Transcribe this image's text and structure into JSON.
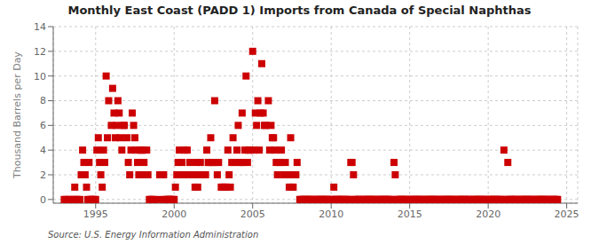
{
  "chart_data": {
    "type": "scatter",
    "title": "Monthly East Coast (PADD 1) Imports from Canada of Special Naphthas",
    "ylabel": "Thousand Barrels per Day",
    "annotations": [
      "Source: U.S. Energy Information Administration"
    ],
    "color": "#cc0000",
    "marker": "square",
    "grid": true,
    "xlim": [
      1992.3,
      2025.7
    ],
    "ylim": [
      -0.3,
      14
    ],
    "xticks": [
      1995,
      2000,
      2005,
      2010,
      2015,
      2020,
      2025
    ],
    "yticks": [
      0,
      2,
      4,
      6,
      8,
      10,
      12,
      14
    ],
    "x": [
      1993.0,
      1993.08,
      1993.25,
      1993.42,
      1993.58,
      1993.67,
      1993.75,
      1993.83,
      1994.0,
      1994.08,
      1994.17,
      1994.25,
      1994.33,
      1994.42,
      1994.5,
      1994.58,
      1994.67,
      1994.75,
      1994.83,
      1994.92,
      1995.0,
      1995.08,
      1995.17,
      1995.25,
      1995.33,
      1995.42,
      1995.5,
      1995.58,
      1995.67,
      1995.75,
      1995.83,
      1996.0,
      1996.08,
      1996.17,
      1996.25,
      1996.33,
      1996.42,
      1996.5,
      1996.58,
      1996.67,
      1996.75,
      1996.83,
      1997.0,
      1997.08,
      1997.17,
      1997.25,
      1997.33,
      1997.42,
      1997.5,
      1997.58,
      1997.67,
      1997.75,
      1997.83,
      1997.92,
      1998.0,
      1998.08,
      1998.17,
      1998.25,
      1998.33,
      1998.42,
      1998.5,
      1998.58,
      1998.67,
      1999.0,
      1999.08,
      1999.17,
      1999.25,
      1999.33,
      1999.42,
      1999.5,
      1999.58,
      1999.67,
      1999.75,
      1999.83,
      1999.92,
      2000.0,
      2000.08,
      2000.17,
      2000.25,
      2000.33,
      2000.42,
      2000.5,
      2000.58,
      2000.67,
      2000.75,
      2000.83,
      2001.0,
      2001.08,
      2001.17,
      2001.25,
      2001.33,
      2001.42,
      2001.5,
      2001.58,
      2001.67,
      2001.75,
      2001.83,
      2002.0,
      2002.08,
      2002.17,
      2002.25,
      2002.33,
      2002.42,
      2002.5,
      2002.58,
      2002.67,
      2002.75,
      2002.83,
      2003.0,
      2003.08,
      2003.17,
      2003.25,
      2003.33,
      2003.42,
      2003.5,
      2003.58,
      2003.67,
      2003.75,
      2003.83,
      2004.0,
      2004.08,
      2004.17,
      2004.25,
      2004.33,
      2004.42,
      2004.5,
      2004.58,
      2004.67,
      2004.75,
      2004.83,
      2005.0,
      2005.08,
      2005.17,
      2005.25,
      2005.33,
      2005.42,
      2005.5,
      2005.58,
      2005.67,
      2005.75,
      2005.83,
      2006.0,
      2006.08,
      2006.17,
      2006.25,
      2006.33,
      2006.42,
      2006.5,
      2006.58,
      2006.67,
      2006.75,
      2006.83,
      2007.0,
      2007.08,
      2007.17,
      2007.25,
      2007.33,
      2007.42,
      2007.5,
      2007.58,
      2007.67,
      2007.75,
      2007.83,
      2008.0,
      2008.08,
      2008.17,
      2008.25,
      2008.33,
      2008.42,
      2008.5,
      2008.58,
      2008.67,
      2008.75,
      2008.83,
      2009.0,
      2009.08,
      2009.17,
      2009.25,
      2009.33,
      2009.42,
      2009.5,
      2009.58,
      2009.67,
      2009.75,
      2009.83,
      2010.0,
      2010.08,
      2010.17,
      2010.25,
      2010.33,
      2010.42,
      2010.5,
      2010.58,
      2010.67,
      2010.75,
      2010.83,
      2011.0,
      2011.08,
      2011.17,
      2011.25,
      2011.33,
      2011.42,
      2011.5,
      2011.58,
      2011.67,
      2011.75,
      2011.83,
      2012.0,
      2012.08,
      2012.17,
      2012.25,
      2012.33,
      2012.42,
      2012.5,
      2012.58,
      2012.67,
      2012.75,
      2012.83,
      2013.0,
      2013.08,
      2013.17,
      2013.25,
      2013.33,
      2013.42,
      2013.5,
      2013.58,
      2013.67,
      2013.75,
      2013.83,
      2014.0,
      2014.08,
      2014.17,
      2014.25,
      2014.33,
      2014.42,
      2014.5,
      2014.58,
      2014.67,
      2014.75,
      2014.83,
      2015.0,
      2015.08,
      2015.17,
      2015.25,
      2015.33,
      2015.42,
      2015.5,
      2015.58,
      2015.67,
      2015.75,
      2015.83,
      2016.0,
      2016.08,
      2016.17,
      2016.25,
      2016.33,
      2016.42,
      2016.5,
      2016.58,
      2016.67,
      2016.75,
      2016.83,
      2017.0,
      2017.08,
      2017.17,
      2017.25,
      2017.33,
      2017.42,
      2017.5,
      2017.58,
      2017.67,
      2017.75,
      2017.83,
      2018.0,
      2018.08,
      2018.17,
      2018.25,
      2018.33,
      2018.42,
      2018.5,
      2018.58,
      2018.67,
      2018.75,
      2018.83,
      2019.0,
      2019.08,
      2019.17,
      2019.25,
      2019.33,
      2019.42,
      2019.5,
      2019.58,
      2019.67,
      2019.75,
      2019.83,
      2020.0,
      2020.08,
      2020.17,
      2020.25,
      2020.33,
      2020.42,
      2020.5,
      2020.58,
      2020.67,
      2020.75,
      2020.83,
      2021.0,
      2021.08,
      2021.17,
      2021.25,
      2021.33,
      2021.42,
      2021.5,
      2021.58,
      2021.67,
      2021.75,
      2021.83,
      2022.0,
      2022.08,
      2022.17,
      2022.25,
      2022.33,
      2022.42,
      2022.5,
      2022.58,
      2022.67,
      2022.75,
      2022.83,
      2023.0,
      2023.08,
      2023.17,
      2023.25,
      2023.33,
      2023.42,
      2023.5,
      2023.58,
      2023.67,
      2023.75,
      2023.83,
      2024.0,
      2024.08,
      2024.17,
      2024.25,
      2024.33,
      2024.42
    ],
    "values": [
      0,
      0,
      0,
      0,
      0,
      1,
      0,
      0,
      0,
      2,
      4,
      3,
      2,
      1,
      0,
      3,
      0,
      0,
      0,
      0,
      0,
      4,
      5,
      3,
      2,
      1,
      4,
      3,
      10,
      5,
      8,
      6,
      9,
      7,
      5,
      6,
      8,
      7,
      5,
      4,
      6,
      6,
      5,
      3,
      2,
      4,
      7,
      6,
      5,
      4,
      3,
      2,
      4,
      4,
      4,
      3,
      2,
      4,
      2,
      0,
      0,
      0,
      0,
      0,
      2,
      2,
      2,
      2,
      0,
      0,
      0,
      0,
      0,
      0,
      0,
      0,
      1,
      2,
      3,
      4,
      2,
      3,
      2,
      4,
      2,
      4,
      3,
      2,
      2,
      2,
      1,
      3,
      1,
      2,
      3,
      2,
      2,
      2,
      4,
      3,
      3,
      5,
      3,
      3,
      8,
      3,
      2,
      3,
      1,
      1,
      1,
      1,
      1,
      4,
      2,
      1,
      3,
      5,
      3,
      4,
      6,
      3,
      3,
      7,
      3,
      4,
      10,
      3,
      4,
      4,
      12,
      4,
      7,
      6,
      8,
      4,
      7,
      11,
      7,
      6,
      6,
      8,
      4,
      6,
      5,
      5,
      4,
      3,
      2,
      3,
      3,
      4,
      2,
      3,
      2,
      2,
      1,
      5,
      1,
      1,
      2,
      2,
      3,
      0,
      0,
      0,
      0,
      0,
      0,
      0,
      0,
      0,
      0,
      0,
      0,
      0,
      0,
      0,
      0,
      0,
      0,
      0,
      0,
      0,
      0,
      0,
      0,
      1,
      0,
      0,
      0,
      0,
      0,
      0,
      0,
      0,
      0,
      0,
      0,
      3,
      3,
      2,
      0,
      0,
      0,
      0,
      0,
      0,
      0,
      0,
      0,
      0,
      0,
      0,
      0,
      0,
      0,
      0,
      0,
      0,
      0,
      0,
      0,
      0,
      0,
      0,
      0,
      0,
      0,
      3,
      2,
      0,
      0,
      0,
      0,
      0,
      0,
      0,
      0,
      0,
      0,
      0,
      0,
      0,
      0,
      0,
      0,
      0,
      0,
      0,
      0,
      0,
      0,
      0,
      0,
      0,
      0,
      0,
      0,
      0,
      0,
      0,
      0,
      0,
      0,
      0,
      0,
      0,
      0,
      0,
      0,
      0,
      0,
      0,
      0,
      0,
      0,
      0,
      0,
      0,
      0,
      0,
      0,
      0,
      0,
      0,
      0,
      0,
      0,
      0,
      0,
      0,
      0,
      0,
      0,
      0,
      0,
      0,
      0,
      0,
      0,
      0,
      0,
      0,
      0,
      0,
      4,
      0,
      0,
      3,
      0,
      0,
      0,
      0,
      0,
      0,
      0,
      0,
      0,
      0,
      0,
      0,
      0,
      0,
      0,
      0,
      0,
      0,
      0,
      0,
      0,
      0,
      0,
      0,
      0,
      0,
      0,
      0,
      0,
      0,
      0,
      0,
      0,
      0,
      0
    ]
  }
}
